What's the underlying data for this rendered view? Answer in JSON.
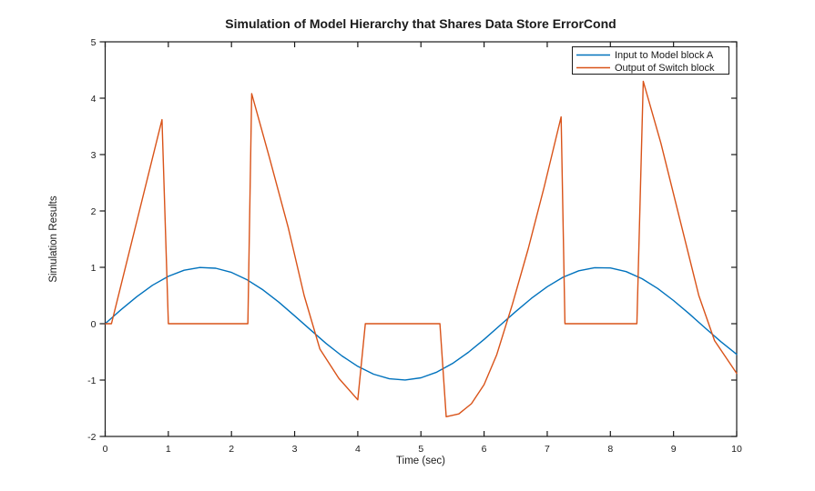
{
  "chart_data": {
    "type": "line",
    "title": "Simulation of Model Hierarchy that Shares Data Store ErrorCond",
    "xlabel": "Time (sec)",
    "ylabel": "Simulation Results",
    "xlim": [
      0,
      10
    ],
    "ylim": [
      -2,
      5
    ],
    "xticks": [
      0,
      1,
      2,
      3,
      4,
      5,
      6,
      7,
      8,
      9,
      10
    ],
    "yticks": [
      -2,
      -1,
      0,
      1,
      2,
      3,
      4,
      5
    ],
    "grid": false,
    "legend_position": "top-right",
    "background": "#ffffff",
    "axis_color": "#1a1a1a",
    "series": [
      {
        "name": "Input to Model block A",
        "color": "#0072BD",
        "points": [
          [
            0,
            0
          ],
          [
            0.25,
            0.247
          ],
          [
            0.5,
            0.479
          ],
          [
            0.75,
            0.682
          ],
          [
            1,
            0.841
          ],
          [
            1.25,
            0.949
          ],
          [
            1.5,
            0.997
          ],
          [
            1.75,
            0.984
          ],
          [
            2,
            0.909
          ],
          [
            2.25,
            0.778
          ],
          [
            2.5,
            0.599
          ],
          [
            2.75,
            0.382
          ],
          [
            3,
            0.141
          ],
          [
            3.25,
            -0.108
          ],
          [
            3.5,
            -0.351
          ],
          [
            3.75,
            -0.572
          ],
          [
            4,
            -0.757
          ],
          [
            4.25,
            -0.895
          ],
          [
            4.5,
            -0.978
          ],
          [
            4.75,
            -0.999
          ],
          [
            5,
            -0.959
          ],
          [
            5.25,
            -0.859
          ],
          [
            5.5,
            -0.706
          ],
          [
            5.75,
            -0.508
          ],
          [
            6,
            -0.279
          ],
          [
            6.25,
            -0.033
          ],
          [
            6.5,
            0.215
          ],
          [
            6.75,
            0.45
          ],
          [
            7,
            0.657
          ],
          [
            7.25,
            0.825
          ],
          [
            7.5,
            0.938
          ],
          [
            7.75,
            0.994
          ],
          [
            8,
            0.989
          ],
          [
            8.25,
            0.924
          ],
          [
            8.5,
            0.798
          ],
          [
            8.75,
            0.625
          ],
          [
            9,
            0.412
          ],
          [
            9.25,
            0.174
          ],
          [
            9.5,
            -0.075
          ],
          [
            9.75,
            -0.32
          ],
          [
            10,
            -0.544
          ]
        ]
      },
      {
        "name": "Output of Switch block",
        "color": "#D95319",
        "points": [
          [
            0,
            0
          ],
          [
            0.1,
            0
          ],
          [
            0.9,
            3.62
          ],
          [
            1.0,
            0
          ],
          [
            2.26,
            0
          ],
          [
            2.32,
            4.08
          ],
          [
            2.6,
            2.95
          ],
          [
            2.9,
            1.7
          ],
          [
            3.15,
            0.5
          ],
          [
            3.4,
            -0.45
          ],
          [
            3.7,
            -0.97
          ],
          [
            4.0,
            -1.35
          ],
          [
            4.12,
            0
          ],
          [
            5.3,
            0
          ],
          [
            5.4,
            -1.65
          ],
          [
            5.6,
            -1.6
          ],
          [
            5.8,
            -1.42
          ],
          [
            6.0,
            -1.08
          ],
          [
            6.2,
            -0.55
          ],
          [
            6.45,
            0.35
          ],
          [
            6.7,
            1.33
          ],
          [
            6.95,
            2.42
          ],
          [
            7.22,
            3.67
          ],
          [
            7.28,
            0
          ],
          [
            8.42,
            0
          ],
          [
            8.52,
            4.3
          ],
          [
            8.8,
            3.2
          ],
          [
            9.1,
            1.85
          ],
          [
            9.4,
            0.5
          ],
          [
            9.65,
            -0.3
          ],
          [
            10,
            -0.88
          ]
        ]
      }
    ]
  }
}
